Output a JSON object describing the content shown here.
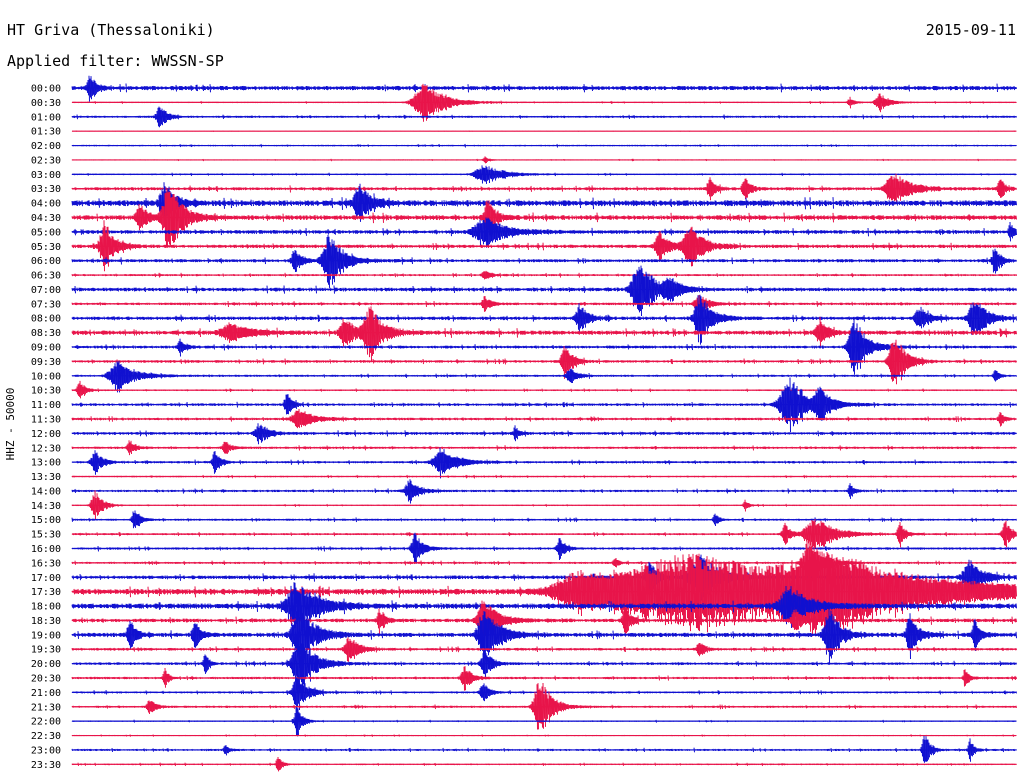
{
  "header": {
    "station": "HT Griva (Thessaloniki)",
    "date": "2015-09-11",
    "filter": "Applied filter: WWSSN-SP"
  },
  "colors": {
    "even_trace": "#1010d0",
    "odd_trace": "#e8144a",
    "text": "#000000",
    "background": "#ffffff"
  },
  "chart_data": {
    "type": "line",
    "subtype": "helicorder",
    "ylabel": "HHZ - 50000",
    "rows": [
      {
        "label": "00:00",
        "noise": 1.6,
        "events": [
          [
            90,
            6,
            0.8
          ]
        ]
      },
      {
        "label": "00:30",
        "noise": 0.5,
        "events": [
          [
            425,
            22,
            1.0
          ],
          [
            880,
            10,
            0.5
          ],
          [
            850,
            5,
            0.3
          ]
        ]
      },
      {
        "label": "01:00",
        "noise": 0.8,
        "events": [
          [
            160,
            8,
            0.6
          ]
        ]
      },
      {
        "label": "01:30",
        "noise": 0.2,
        "events": []
      },
      {
        "label": "02:00",
        "noise": 0.6,
        "events": []
      },
      {
        "label": "02:30",
        "noise": 0.4,
        "events": [
          [
            485,
            4,
            0.2
          ]
        ]
      },
      {
        "label": "03:00",
        "noise": 0.6,
        "events": [
          [
            485,
            20,
            0.5
          ]
        ]
      },
      {
        "label": "03:30",
        "noise": 1.2,
        "events": [
          [
            710,
            6,
            0.6
          ],
          [
            745,
            6,
            0.6
          ],
          [
            895,
            18,
            0.8
          ],
          [
            1000,
            5,
            0.6
          ]
        ]
      },
      {
        "label": "04:00",
        "noise": 2.2,
        "events": [
          [
            165,
            10,
            1.2
          ],
          [
            360,
            12,
            1.0
          ]
        ]
      },
      {
        "label": "04:30",
        "noise": 1.8,
        "events": [
          [
            170,
            14,
            1.8
          ],
          [
            140,
            8,
            0.8
          ],
          [
            488,
            8,
            1.0
          ]
        ]
      },
      {
        "label": "05:00",
        "noise": 1.4,
        "events": [
          [
            485,
            22,
            0.8
          ],
          [
            1010,
            4,
            0.5
          ]
        ]
      },
      {
        "label": "05:30",
        "noise": 1.3,
        "events": [
          [
            105,
            10,
            1.4
          ],
          [
            690,
            14,
            1.2
          ],
          [
            660,
            10,
            0.8
          ]
        ]
      },
      {
        "label": "06:00",
        "noise": 1.2,
        "events": [
          [
            330,
            14,
            1.4
          ],
          [
            295,
            8,
            0.6
          ],
          [
            995,
            6,
            0.8
          ]
        ]
      },
      {
        "label": "06:30",
        "noise": 0.8,
        "events": [
          [
            485,
            6,
            0.3
          ]
        ]
      },
      {
        "label": "07:00",
        "noise": 1.4,
        "events": [
          [
            640,
            16,
            1.6
          ],
          [
            670,
            10,
            0.6
          ]
        ]
      },
      {
        "label": "07:30",
        "noise": 1.0,
        "events": [
          [
            485,
            6,
            0.4
          ],
          [
            700,
            10,
            0.5
          ]
        ]
      },
      {
        "label": "08:00",
        "noise": 1.3,
        "events": [
          [
            580,
            8,
            0.8
          ],
          [
            700,
            12,
            1.4
          ],
          [
            975,
            12,
            1.2
          ],
          [
            920,
            10,
            0.6
          ]
        ]
      },
      {
        "label": "08:30",
        "noise": 1.6,
        "events": [
          [
            370,
            14,
            1.4
          ],
          [
            345,
            10,
            0.8
          ],
          [
            820,
            8,
            0.8
          ],
          [
            230,
            20,
            0.5
          ]
        ]
      },
      {
        "label": "09:00",
        "noise": 1.1,
        "events": [
          [
            855,
            12,
            1.6
          ],
          [
            180,
            6,
            0.4
          ]
        ]
      },
      {
        "label": "09:30",
        "noise": 1.0,
        "events": [
          [
            565,
            8,
            1.0
          ],
          [
            895,
            12,
            1.4
          ]
        ]
      },
      {
        "label": "10:00",
        "noise": 0.8,
        "events": [
          [
            118,
            18,
            0.8
          ],
          [
            570,
            8,
            0.4
          ],
          [
            995,
            4,
            0.4
          ]
        ]
      },
      {
        "label": "10:30",
        "noise": 0.6,
        "events": [
          [
            80,
            6,
            0.5
          ]
        ]
      },
      {
        "label": "11:00",
        "noise": 1.0,
        "events": [
          [
            790,
            20,
            1.4
          ],
          [
            820,
            10,
            0.8
          ],
          [
            287,
            6,
            0.6
          ]
        ]
      },
      {
        "label": "11:30",
        "noise": 1.0,
        "events": [
          [
            300,
            16,
            0.5
          ],
          [
            1000,
            4,
            0.4
          ]
        ]
      },
      {
        "label": "12:00",
        "noise": 1.1,
        "events": [
          [
            260,
            10,
            0.5
          ],
          [
            515,
            4,
            0.4
          ]
        ]
      },
      {
        "label": "12:30",
        "noise": 0.9,
        "events": [
          [
            130,
            6,
            0.4
          ],
          [
            225,
            6,
            0.4
          ]
        ]
      },
      {
        "label": "13:00",
        "noise": 0.9,
        "events": [
          [
            95,
            8,
            0.6
          ],
          [
            442,
            16,
            0.8
          ],
          [
            215,
            6,
            0.6
          ]
        ]
      },
      {
        "label": "13:30",
        "noise": 0.6,
        "events": []
      },
      {
        "label": "14:00",
        "noise": 0.9,
        "events": [
          [
            410,
            10,
            0.6
          ],
          [
            850,
            4,
            0.4
          ]
        ]
      },
      {
        "label": "14:30",
        "noise": 0.5,
        "events": [
          [
            95,
            8,
            0.8
          ],
          [
            745,
            4,
            0.3
          ]
        ]
      },
      {
        "label": "15:00",
        "noise": 0.8,
        "events": [
          [
            135,
            6,
            0.6
          ],
          [
            715,
            4,
            0.4
          ]
        ]
      },
      {
        "label": "15:30",
        "noise": 0.8,
        "events": [
          [
            815,
            20,
            0.9
          ],
          [
            1005,
            6,
            0.8
          ],
          [
            785,
            6,
            0.6
          ],
          [
            900,
            6,
            0.6
          ]
        ]
      },
      {
        "label": "16:00",
        "noise": 0.9,
        "events": [
          [
            415,
            8,
            0.8
          ],
          [
            560,
            6,
            0.6
          ]
        ]
      },
      {
        "label": "16:30",
        "noise": 0.8,
        "events": [
          [
            810,
            14,
            1.4
          ],
          [
            615,
            4,
            0.3
          ]
        ]
      },
      {
        "label": "17:00",
        "noise": 1.4,
        "events": [
          [
            650,
            8,
            1.0
          ],
          [
            700,
            20,
            1.2
          ],
          [
            970,
            14,
            0.9
          ]
        ]
      },
      {
        "label": "17:30",
        "noise": 2.2,
        "events": [
          [
            700,
            160,
            1.9
          ],
          [
            830,
            80,
            1.5
          ],
          [
            580,
            50,
            0.9
          ]
        ]
      },
      {
        "label": "18:00",
        "noise": 2.0,
        "events": [
          [
            297,
            22,
            1.4
          ],
          [
            790,
            20,
            1.1
          ]
        ]
      },
      {
        "label": "18:30",
        "noise": 1.4,
        "events": [
          [
            485,
            14,
            1.2
          ],
          [
            625,
            6,
            0.8
          ],
          [
            795,
            8,
            0.6
          ],
          [
            380,
            6,
            0.6
          ]
        ]
      },
      {
        "label": "19:00",
        "noise": 1.6,
        "events": [
          [
            300,
            16,
            1.6
          ],
          [
            485,
            14,
            1.6
          ],
          [
            830,
            12,
            1.4
          ],
          [
            910,
            8,
            1.1
          ],
          [
            195,
            6,
            0.8
          ],
          [
            130,
            6,
            0.8
          ],
          [
            975,
            6,
            0.8
          ]
        ]
      },
      {
        "label": "19:30",
        "noise": 1.0,
        "events": [
          [
            350,
            10,
            0.7
          ],
          [
            700,
            6,
            0.4
          ]
        ]
      },
      {
        "label": "20:00",
        "noise": 1.0,
        "events": [
          [
            300,
            16,
            1.4
          ],
          [
            485,
            8,
            0.7
          ],
          [
            205,
            4,
            0.6
          ]
        ]
      },
      {
        "label": "20:30",
        "noise": 0.9,
        "events": [
          [
            465,
            8,
            0.6
          ],
          [
            165,
            4,
            0.5
          ],
          [
            965,
            4,
            0.5
          ]
        ]
      },
      {
        "label": "21:00",
        "noise": 0.8,
        "events": [
          [
            298,
            10,
            1.0
          ],
          [
            483,
            6,
            0.6
          ]
        ]
      },
      {
        "label": "21:30",
        "noise": 0.8,
        "events": [
          [
            540,
            12,
            1.6
          ],
          [
            150,
            6,
            0.4
          ]
        ]
      },
      {
        "label": "22:00",
        "noise": 0.5,
        "events": [
          [
            297,
            6,
            0.8
          ]
        ]
      },
      {
        "label": "22:30",
        "noise": 0.4,
        "events": []
      },
      {
        "label": "23:00",
        "noise": 0.8,
        "events": [
          [
            925,
            6,
            0.9
          ],
          [
            970,
            4,
            0.6
          ],
          [
            225,
            4,
            0.3
          ]
        ]
      },
      {
        "label": "23:30",
        "noise": 0.6,
        "events": [
          [
            278,
            4,
            0.5
          ]
        ]
      }
    ]
  }
}
